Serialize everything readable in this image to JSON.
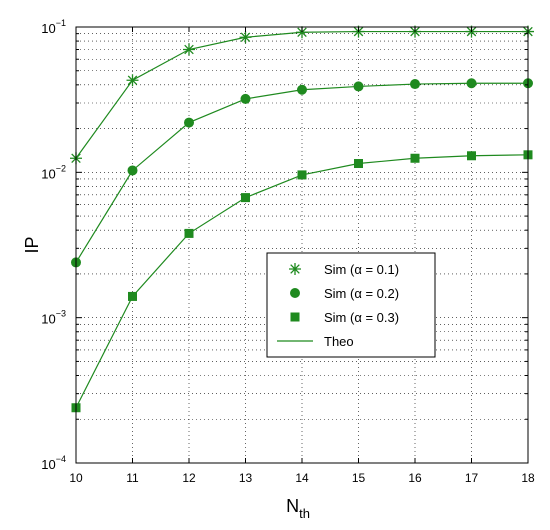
{
  "chart_data": {
    "type": "line",
    "xlabel": "N",
    "xlabel_sub": "th",
    "ylabel": "IP",
    "y_scale": "log",
    "xlim": [
      10,
      18
    ],
    "ylim": [
      0.0001,
      0.1
    ],
    "x_ticks": [
      10,
      11,
      12,
      13,
      14,
      15,
      16,
      17,
      18
    ],
    "y_ticks": [
      {
        "value": 0.0001,
        "base": "10",
        "exp": "−4"
      },
      {
        "value": 0.001,
        "base": "10",
        "exp": "−3"
      },
      {
        "value": 0.01,
        "base": "10",
        "exp": "−2"
      },
      {
        "value": 0.1,
        "base": "10",
        "exp": "−1"
      }
    ],
    "grid": true,
    "legend_position": "center-right",
    "color": "#1f8a1f",
    "x": [
      10,
      11,
      12,
      13,
      14,
      15,
      16,
      17,
      18
    ],
    "series": [
      {
        "name": "Sim (α = 0.1)",
        "marker": "asterisk",
        "values": [
          0.0125,
          0.043,
          0.07,
          0.085,
          0.092,
          0.093,
          0.093,
          0.093,
          0.093
        ]
      },
      {
        "name": "Sim (α = 0.2)",
        "marker": "circle",
        "values": [
          0.0024,
          0.0103,
          0.022,
          0.032,
          0.037,
          0.039,
          0.0405,
          0.041,
          0.041
        ]
      },
      {
        "name": "Sim (α = 0.3)",
        "marker": "square",
        "values": [
          0.00024,
          0.0014,
          0.0038,
          0.0067,
          0.0096,
          0.0115,
          0.0125,
          0.013,
          0.0132
        ]
      }
    ],
    "legend": [
      {
        "label": "Sim (α = 0.1)",
        "kind": "asterisk"
      },
      {
        "label": "Sim (α = 0.2)",
        "kind": "circle"
      },
      {
        "label": "Sim (α = 0.3)",
        "kind": "square"
      },
      {
        "label": "Theo",
        "kind": "line"
      }
    ]
  }
}
